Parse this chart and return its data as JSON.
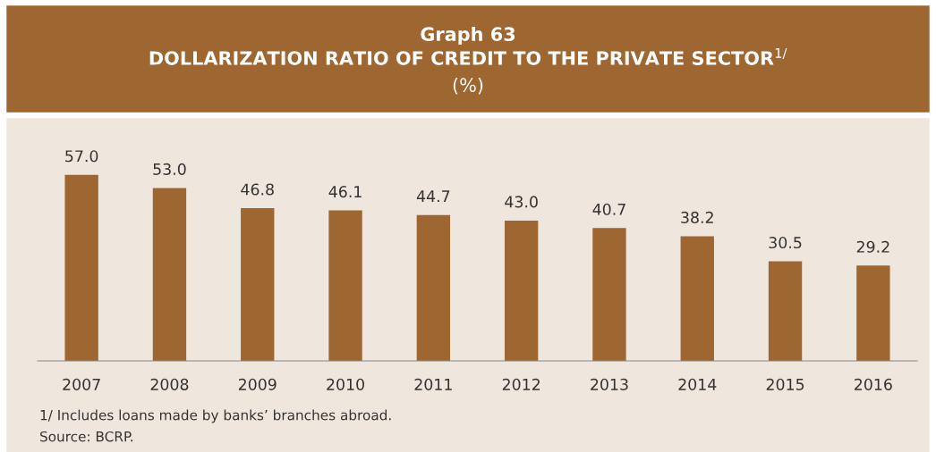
{
  "chart_data": {
    "type": "bar",
    "title": "Graph 63",
    "subtitle": "DOLLARIZATION RATIO OF CREDIT TO THE PRIVATE SECTOR$^{1/}$\n(%)",
    "categories": [
      "2007",
      "2008",
      "2009",
      "2010",
      "2011",
      "2012",
      "2013",
      "2014",
      "2015",
      "2016"
    ],
    "values": [
      57.0,
      53.0,
      46.8,
      46.1,
      44.7,
      43.0,
      40.7,
      38.2,
      30.5,
      29.2
    ],
    "color": "#9e6630",
    "value_labels": [
      "57.0",
      "53.0",
      "46.8",
      "46.1",
      "44.7",
      "43.0",
      "40.7",
      "38.2",
      "30.5",
      "29.2"
    ],
    "annotations": [
      "1/ Includes loans made by banks’ branches abroad.",
      "Source: BCRP."
    ]
  }
}
